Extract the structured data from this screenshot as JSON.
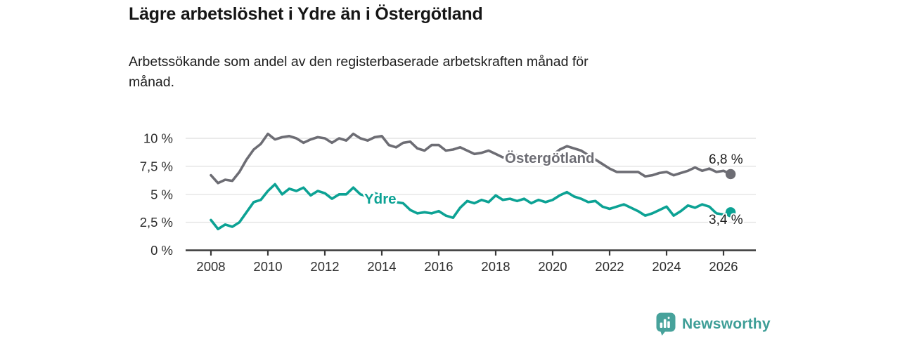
{
  "header": {
    "title": "Lägre arbetslöshet i Ydre än i Östergötland",
    "subtitle": "Arbetssökande som andel av den registerbaserade arbetskraften månad för månad.",
    "subtitle_lines": [
      "Arbetssökande som andel av den registerbaserade arbetskraften månad för",
      "månad."
    ]
  },
  "footer": {
    "brand": "Newsworthy"
  },
  "colors": {
    "line_gray": "#6D6D74",
    "line_teal": "#0CA294",
    "brand_teal": "#3E9E97",
    "text_dark": "#1f1f1f",
    "grid": "#E4E4E4",
    "axis": "#3a3a3a"
  },
  "chart_data": {
    "type": "line",
    "title": "Lägre arbetslöshet i Ydre än i Östergötland",
    "subtitle": "Arbetssökande som andel av den registerbaserade arbetskraften månad för månad.",
    "unit": "%",
    "grid": "horizontal",
    "legend_position": "inline-labels",
    "ylim": [
      0,
      10.9
    ],
    "xlim": [
      2007.1,
      2027.1
    ],
    "xticks": [
      2008,
      2010,
      2012,
      2014,
      2016,
      2018,
      2020,
      2022,
      2024,
      2026
    ],
    "yticks": [
      {
        "value": 0,
        "label": "0 %"
      },
      {
        "value": 2.5,
        "label": "2,5 %"
      },
      {
        "value": 5,
        "label": "5 %"
      },
      {
        "value": 7.5,
        "label": "7,5 %"
      },
      {
        "value": 10,
        "label": "10 %"
      }
    ],
    "x": [
      2008,
      2008.25,
      2008.5,
      2008.75,
      2009,
      2009.25,
      2009.5,
      2009.75,
      2010,
      2010.25,
      2010.5,
      2010.75,
      2011,
      2011.25,
      2011.5,
      2011.75,
      2012,
      2012.25,
      2012.5,
      2012.75,
      2013,
      2013.25,
      2013.5,
      2013.75,
      2014,
      2014.25,
      2014.5,
      2014.75,
      2015,
      2015.25,
      2015.5,
      2015.75,
      2016,
      2016.25,
      2016.5,
      2016.75,
      2017,
      2017.25,
      2017.5,
      2017.75,
      2018,
      2018.25,
      2018.5,
      2018.75,
      2019,
      2019.25,
      2019.5,
      2019.75,
      2020,
      2020.25,
      2020.5,
      2020.75,
      2021,
      2021.25,
      2021.5,
      2021.75,
      2022,
      2022.25,
      2022.5,
      2022.75,
      2023,
      2023.25,
      2023.5,
      2023.75,
      2024,
      2024.25,
      2024.5,
      2024.75,
      2025,
      2025.25,
      2025.5,
      2025.75,
      2026,
      2026.25
    ],
    "series": [
      {
        "name": "Östergötland",
        "color": "#6D6D74",
        "end_label": "6,8 %",
        "end_value": 6.8,
        "values": [
          6.7,
          6.0,
          6.3,
          6.2,
          7.0,
          8.1,
          9.0,
          9.5,
          10.4,
          9.9,
          10.1,
          10.2,
          10.0,
          9.6,
          9.9,
          10.1,
          10.0,
          9.6,
          10.0,
          9.8,
          10.4,
          10.0,
          9.8,
          10.1,
          10.2,
          9.4,
          9.2,
          9.6,
          9.7,
          9.1,
          8.9,
          9.4,
          9.4,
          8.9,
          9.0,
          9.2,
          8.9,
          8.6,
          8.7,
          8.9,
          8.6,
          8.3,
          8.4,
          8.5,
          8.4,
          8.2,
          8.4,
          8.4,
          8.5,
          9.0,
          9.3,
          9.1,
          8.9,
          8.5,
          8.1,
          7.7,
          7.3,
          7.0,
          7.0,
          7.0,
          7.0,
          6.6,
          6.7,
          6.9,
          7.0,
          6.7,
          6.9,
          7.1,
          7.4,
          7.1,
          7.3,
          7.0,
          7.1,
          6.8
        ]
      },
      {
        "name": "Ydre",
        "color": "#0CA294",
        "end_label": "3,4 %",
        "end_value": 3.4,
        "values": [
          2.7,
          1.9,
          2.3,
          2.1,
          2.5,
          3.4,
          4.3,
          4.5,
          5.3,
          5.9,
          5.0,
          5.5,
          5.3,
          5.6,
          4.9,
          5.3,
          5.1,
          4.6,
          5.0,
          5.0,
          5.6,
          5.0,
          4.8,
          5.1,
          4.9,
          4.6,
          4.3,
          4.2,
          3.6,
          3.3,
          3.4,
          3.3,
          3.5,
          3.1,
          2.9,
          3.8,
          4.4,
          4.2,
          4.5,
          4.3,
          4.9,
          4.5,
          4.6,
          4.4,
          4.6,
          4.2,
          4.5,
          4.3,
          4.5,
          4.9,
          5.2,
          4.8,
          4.6,
          4.3,
          4.4,
          3.9,
          3.7,
          3.9,
          4.1,
          3.8,
          3.5,
          3.1,
          3.3,
          3.6,
          3.9,
          3.1,
          3.5,
          4.0,
          3.8,
          4.1,
          3.9,
          3.3,
          3.2,
          3.4
        ]
      }
    ]
  }
}
